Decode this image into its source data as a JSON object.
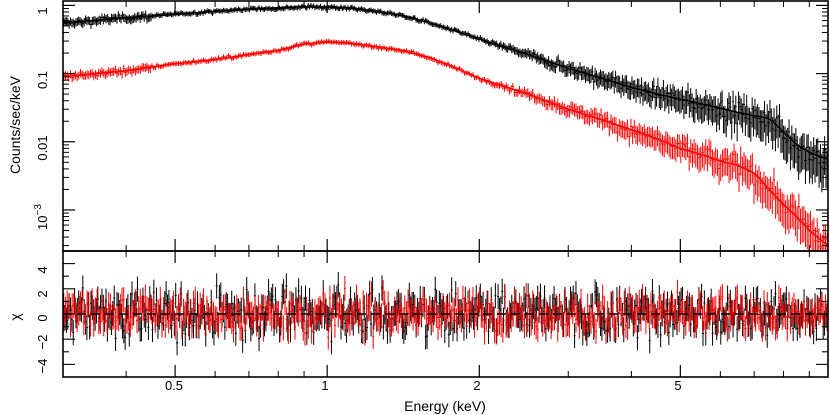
{
  "chart_data": {
    "type": "scatter",
    "title": "",
    "xlabel": "Energy (keV)",
    "xscale": "log",
    "xlim": [
      0.3,
      9.8
    ],
    "x_ticks": [
      "0.5",
      "1",
      "2",
      "5"
    ],
    "grid": false,
    "legend": "none",
    "panels": [
      {
        "name": "spectrum",
        "ylabel": "Counts/sec/keV",
        "yscale": "log",
        "ylim": [
          0.00025,
          1.2
        ],
        "y_ticks": [
          "10^-3",
          "0.01",
          "0.1",
          "1"
        ],
        "y_tick_base": "10",
        "y_tick_exponent": "−3"
      },
      {
        "name": "residuals",
        "ylabel": "χ",
        "yscale": "linear",
        "ylim": [
          -5,
          5
        ],
        "y_ticks": [
          "−4",
          "−2",
          "0",
          "2",
          "4"
        ],
        "reference_line": 0
      }
    ],
    "series": [
      {
        "color": "#000000",
        "model": {
          "x": [
            0.3,
            0.4,
            0.5,
            0.6,
            0.7,
            0.8,
            0.9,
            1.0,
            1.1,
            1.2,
            1.4,
            1.6,
            1.8,
            2.0,
            2.5,
            3.0,
            3.5,
            4.0,
            4.5,
            5.0,
            5.5,
            6.0,
            6.5,
            7.0,
            7.5,
            8.0,
            8.5,
            9.0,
            9.8
          ],
          "y": [
            0.55,
            0.66,
            0.74,
            0.82,
            0.88,
            0.92,
            0.95,
            0.95,
            0.92,
            0.85,
            0.72,
            0.55,
            0.42,
            0.32,
            0.19,
            0.12,
            0.085,
            0.063,
            0.05,
            0.042,
            0.036,
            0.031,
            0.027,
            0.024,
            0.022,
            0.014,
            0.009,
            0.007,
            0.0055
          ]
        },
        "residual_amplitude": 1.3
      },
      {
        "color": "#ff0000",
        "model": {
          "x": [
            0.3,
            0.4,
            0.5,
            0.6,
            0.7,
            0.8,
            0.9,
            1.0,
            1.1,
            1.2,
            1.4,
            1.6,
            1.8,
            2.0,
            2.5,
            3.0,
            3.5,
            4.0,
            4.5,
            5.0,
            5.5,
            6.0,
            6.5,
            7.0,
            7.5,
            8.0,
            8.5,
            9.0,
            9.8
          ],
          "y": [
            0.09,
            0.11,
            0.14,
            0.16,
            0.19,
            0.22,
            0.27,
            0.29,
            0.28,
            0.26,
            0.22,
            0.17,
            0.12,
            0.085,
            0.05,
            0.03,
            0.021,
            0.015,
            0.011,
            0.008,
            0.0065,
            0.0052,
            0.0045,
            0.0035,
            0.002,
            0.0012,
            0.0008,
            0.0005,
            0.0003
          ]
        },
        "residual_amplitude": 1.0
      }
    ]
  }
}
